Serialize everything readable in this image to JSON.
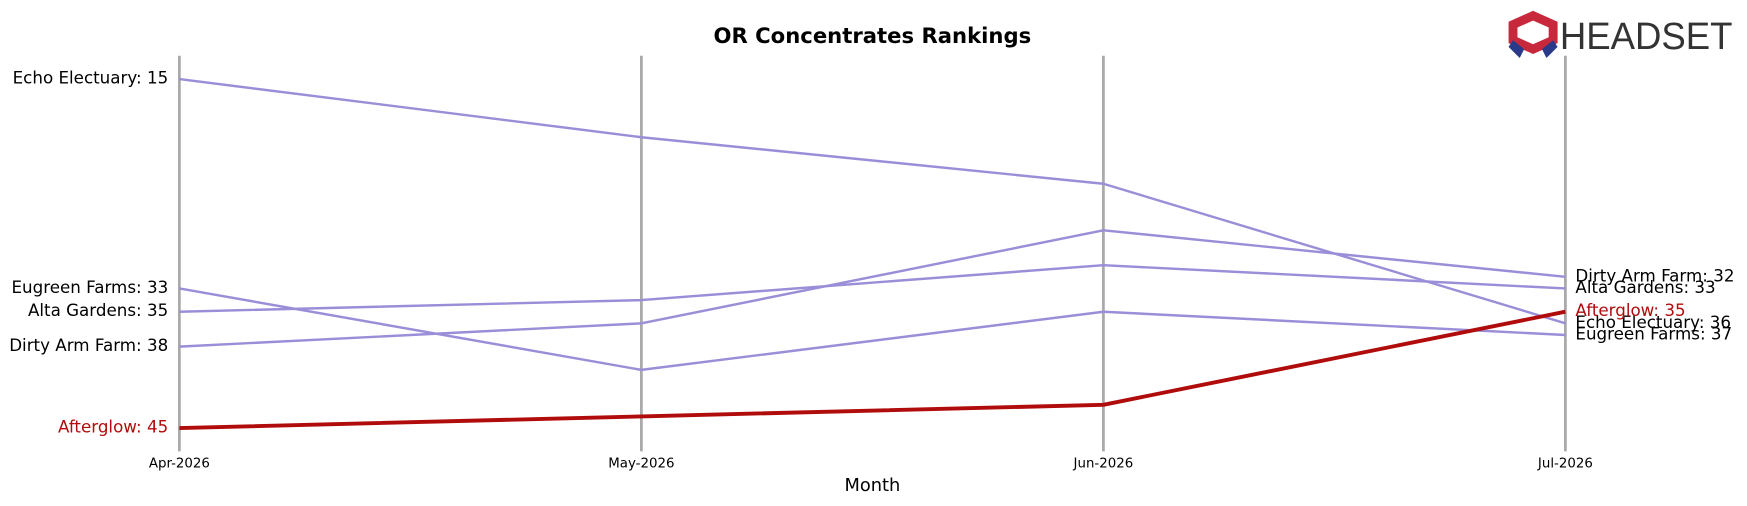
{
  "chart_data": {
    "type": "bump",
    "title": "OR Concentrates Rankings",
    "x_label": "Month",
    "logo": "HEADSET",
    "categories": [
      "Apr-2026",
      "May-2026",
      "Jun-2026",
      "Jul-2026"
    ],
    "ylim": [
      47,
      13
    ],
    "series": [
      {
        "name": "Echo Electuary",
        "color": "#9a8ed8",
        "values": [
          15,
          20,
          24,
          36
        ],
        "start_label": "Echo Electuary: 15",
        "end_label": "Echo Electuary: 36"
      },
      {
        "name": "Eugreen Farms",
        "color": "#9a8ed8",
        "values": [
          33,
          40,
          35,
          37
        ],
        "start_label": "Eugreen Farms: 33",
        "end_label": "Eugreen Farms: 37"
      },
      {
        "name": "Alta Gardens",
        "color": "#9a8ed8",
        "values": [
          35,
          34,
          31,
          33
        ],
        "start_label": "Alta Gardens: 35",
        "end_label": "Alta Gardens: 33"
      },
      {
        "name": "Dirty Arm Farm",
        "color": "#9a8ed8",
        "values": [
          38,
          36,
          28,
          32
        ],
        "start_label": "Dirty Arm Farm: 38",
        "end_label": "Dirty Arm Farm: 32"
      },
      {
        "name": "Afterglow",
        "color": "#b00c0c",
        "values": [
          45,
          44,
          43,
          35
        ],
        "start_label": "Afterglow: 45",
        "end_label": "Afterglow: 35",
        "highlight": true
      }
    ]
  }
}
